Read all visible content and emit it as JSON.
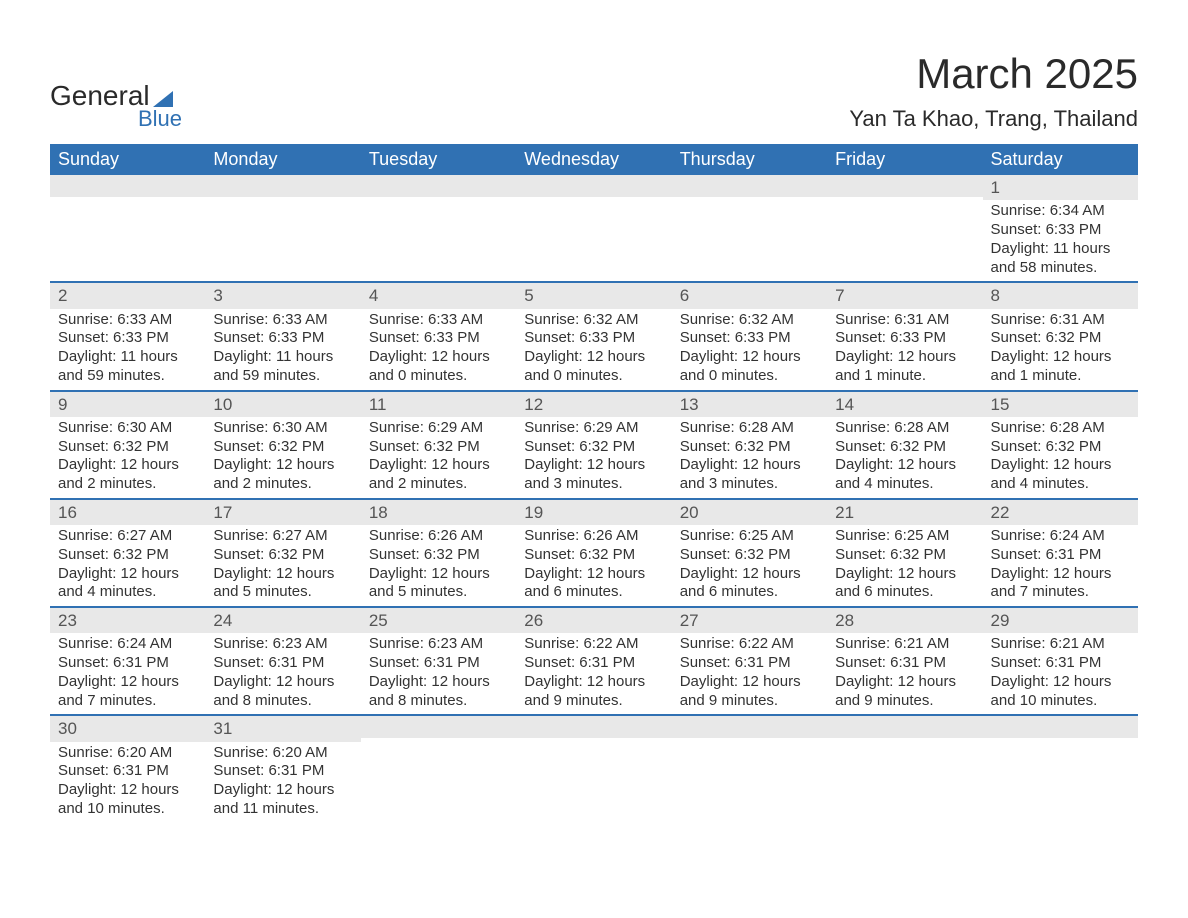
{
  "brand": {
    "name_top": "General",
    "name_bottom": "Blue"
  },
  "title": "March 2025",
  "subtitle": "Yan Ta Khao, Trang, Thailand",
  "colors": {
    "header_bg": "#3071b3",
    "header_text": "#ffffff",
    "daynum_bg": "#e8e8e8",
    "daynum_text": "#555555",
    "body_text": "#333333",
    "row_border": "#3071b3",
    "page_bg": "#ffffff",
    "logo_accent": "#3071b3"
  },
  "typography": {
    "title_fontsize": 42,
    "subtitle_fontsize": 22,
    "weekday_fontsize": 18,
    "daynum_fontsize": 17,
    "cell_fontsize": 15,
    "font_family": "Arial"
  },
  "weekdays": [
    "Sunday",
    "Monday",
    "Tuesday",
    "Wednesday",
    "Thursday",
    "Friday",
    "Saturday"
  ],
  "weeks": [
    [
      null,
      null,
      null,
      null,
      null,
      null,
      {
        "n": "1",
        "sunrise": "Sunrise: 6:34 AM",
        "sunset": "Sunset: 6:33 PM",
        "daylight": "Daylight: 11 hours and 58 minutes."
      }
    ],
    [
      {
        "n": "2",
        "sunrise": "Sunrise: 6:33 AM",
        "sunset": "Sunset: 6:33 PM",
        "daylight": "Daylight: 11 hours and 59 minutes."
      },
      {
        "n": "3",
        "sunrise": "Sunrise: 6:33 AM",
        "sunset": "Sunset: 6:33 PM",
        "daylight": "Daylight: 11 hours and 59 minutes."
      },
      {
        "n": "4",
        "sunrise": "Sunrise: 6:33 AM",
        "sunset": "Sunset: 6:33 PM",
        "daylight": "Daylight: 12 hours and 0 minutes."
      },
      {
        "n": "5",
        "sunrise": "Sunrise: 6:32 AM",
        "sunset": "Sunset: 6:33 PM",
        "daylight": "Daylight: 12 hours and 0 minutes."
      },
      {
        "n": "6",
        "sunrise": "Sunrise: 6:32 AM",
        "sunset": "Sunset: 6:33 PM",
        "daylight": "Daylight: 12 hours and 0 minutes."
      },
      {
        "n": "7",
        "sunrise": "Sunrise: 6:31 AM",
        "sunset": "Sunset: 6:33 PM",
        "daylight": "Daylight: 12 hours and 1 minute."
      },
      {
        "n": "8",
        "sunrise": "Sunrise: 6:31 AM",
        "sunset": "Sunset: 6:32 PM",
        "daylight": "Daylight: 12 hours and 1 minute."
      }
    ],
    [
      {
        "n": "9",
        "sunrise": "Sunrise: 6:30 AM",
        "sunset": "Sunset: 6:32 PM",
        "daylight": "Daylight: 12 hours and 2 minutes."
      },
      {
        "n": "10",
        "sunrise": "Sunrise: 6:30 AM",
        "sunset": "Sunset: 6:32 PM",
        "daylight": "Daylight: 12 hours and 2 minutes."
      },
      {
        "n": "11",
        "sunrise": "Sunrise: 6:29 AM",
        "sunset": "Sunset: 6:32 PM",
        "daylight": "Daylight: 12 hours and 2 minutes."
      },
      {
        "n": "12",
        "sunrise": "Sunrise: 6:29 AM",
        "sunset": "Sunset: 6:32 PM",
        "daylight": "Daylight: 12 hours and 3 minutes."
      },
      {
        "n": "13",
        "sunrise": "Sunrise: 6:28 AM",
        "sunset": "Sunset: 6:32 PM",
        "daylight": "Daylight: 12 hours and 3 minutes."
      },
      {
        "n": "14",
        "sunrise": "Sunrise: 6:28 AM",
        "sunset": "Sunset: 6:32 PM",
        "daylight": "Daylight: 12 hours and 4 minutes."
      },
      {
        "n": "15",
        "sunrise": "Sunrise: 6:28 AM",
        "sunset": "Sunset: 6:32 PM",
        "daylight": "Daylight: 12 hours and 4 minutes."
      }
    ],
    [
      {
        "n": "16",
        "sunrise": "Sunrise: 6:27 AM",
        "sunset": "Sunset: 6:32 PM",
        "daylight": "Daylight: 12 hours and 4 minutes."
      },
      {
        "n": "17",
        "sunrise": "Sunrise: 6:27 AM",
        "sunset": "Sunset: 6:32 PM",
        "daylight": "Daylight: 12 hours and 5 minutes."
      },
      {
        "n": "18",
        "sunrise": "Sunrise: 6:26 AM",
        "sunset": "Sunset: 6:32 PM",
        "daylight": "Daylight: 12 hours and 5 minutes."
      },
      {
        "n": "19",
        "sunrise": "Sunrise: 6:26 AM",
        "sunset": "Sunset: 6:32 PM",
        "daylight": "Daylight: 12 hours and 6 minutes."
      },
      {
        "n": "20",
        "sunrise": "Sunrise: 6:25 AM",
        "sunset": "Sunset: 6:32 PM",
        "daylight": "Daylight: 12 hours and 6 minutes."
      },
      {
        "n": "21",
        "sunrise": "Sunrise: 6:25 AM",
        "sunset": "Sunset: 6:32 PM",
        "daylight": "Daylight: 12 hours and 6 minutes."
      },
      {
        "n": "22",
        "sunrise": "Sunrise: 6:24 AM",
        "sunset": "Sunset: 6:31 PM",
        "daylight": "Daylight: 12 hours and 7 minutes."
      }
    ],
    [
      {
        "n": "23",
        "sunrise": "Sunrise: 6:24 AM",
        "sunset": "Sunset: 6:31 PM",
        "daylight": "Daylight: 12 hours and 7 minutes."
      },
      {
        "n": "24",
        "sunrise": "Sunrise: 6:23 AM",
        "sunset": "Sunset: 6:31 PM",
        "daylight": "Daylight: 12 hours and 8 minutes."
      },
      {
        "n": "25",
        "sunrise": "Sunrise: 6:23 AM",
        "sunset": "Sunset: 6:31 PM",
        "daylight": "Daylight: 12 hours and 8 minutes."
      },
      {
        "n": "26",
        "sunrise": "Sunrise: 6:22 AM",
        "sunset": "Sunset: 6:31 PM",
        "daylight": "Daylight: 12 hours and 9 minutes."
      },
      {
        "n": "27",
        "sunrise": "Sunrise: 6:22 AM",
        "sunset": "Sunset: 6:31 PM",
        "daylight": "Daylight: 12 hours and 9 minutes."
      },
      {
        "n": "28",
        "sunrise": "Sunrise: 6:21 AM",
        "sunset": "Sunset: 6:31 PM",
        "daylight": "Daylight: 12 hours and 9 minutes."
      },
      {
        "n": "29",
        "sunrise": "Sunrise: 6:21 AM",
        "sunset": "Sunset: 6:31 PM",
        "daylight": "Daylight: 12 hours and 10 minutes."
      }
    ],
    [
      {
        "n": "30",
        "sunrise": "Sunrise: 6:20 AM",
        "sunset": "Sunset: 6:31 PM",
        "daylight": "Daylight: 12 hours and 10 minutes."
      },
      {
        "n": "31",
        "sunrise": "Sunrise: 6:20 AM",
        "sunset": "Sunset: 6:31 PM",
        "daylight": "Daylight: 12 hours and 11 minutes."
      },
      null,
      null,
      null,
      null,
      null
    ]
  ]
}
